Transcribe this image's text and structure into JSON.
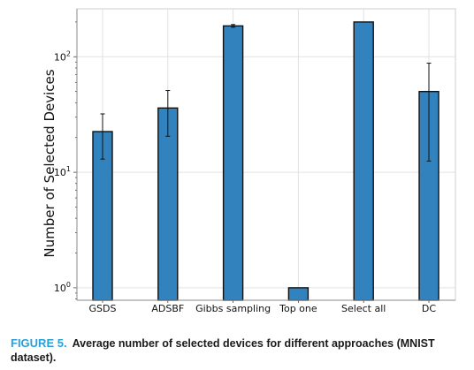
{
  "chart_data": {
    "type": "bar",
    "title": "",
    "xlabel": "",
    "ylabel": "Number of Selected Devices",
    "yscale": "log",
    "ylim": [
      0.78,
      260
    ],
    "yticks": [
      1,
      10,
      100
    ],
    "ytick_labels": [
      {
        "base": "10",
        "exp": "0"
      },
      {
        "base": "10",
        "exp": "1"
      },
      {
        "base": "10",
        "exp": "2"
      }
    ],
    "grid": true,
    "categories": [
      "GSDS",
      "ADSBF",
      "Gibbs sampling",
      "Top one",
      "Select all",
      "DC"
    ],
    "values": [
      22.5,
      36,
      185,
      1,
      200,
      50
    ],
    "errors": [
      {
        "low": 13,
        "high": 32
      },
      {
        "low": 20.5,
        "high": 51
      },
      {
        "low": 180,
        "high": 190
      },
      null,
      null,
      {
        "low": 12.5,
        "high": 88
      }
    ],
    "bar_color": "#3182bd",
    "edge_color": "#111111"
  },
  "caption": {
    "label": "FIGURE 5.",
    "text": "Average number of selected devices for different approaches (MNIST dataset)."
  }
}
